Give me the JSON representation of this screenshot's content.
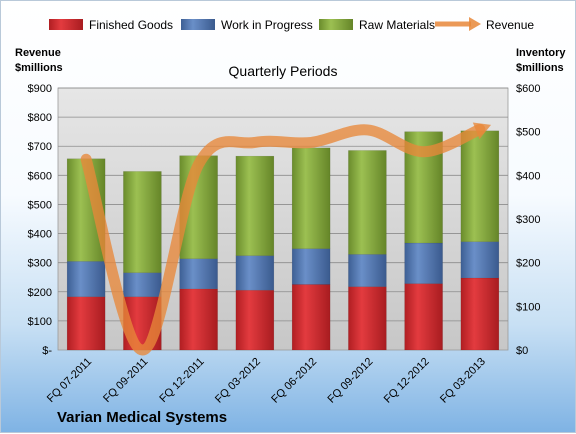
{
  "chart_data": {
    "type": "bar",
    "title": "Quarterly Periods",
    "company": "Varian Medical Systems",
    "left_axis_label": [
      "Revenue",
      "$millions"
    ],
    "right_axis_label": [
      "Inventory",
      "$millions"
    ],
    "categories": [
      "FQ 07-2011",
      "FQ 09-2011",
      "FQ 12-2011",
      "FQ 03-2012",
      "FQ 06-2012",
      "FQ 09-2012",
      "FQ 12-2012",
      "FQ 03-2013"
    ],
    "left_ticks": [
      "$-",
      "$100",
      "$200",
      "$300",
      "$400",
      "$500",
      "$600",
      "$700",
      "$800",
      "$900"
    ],
    "right_ticks": [
      "$0",
      "$100",
      "$200",
      "$300",
      "$400",
      "$500",
      "$600"
    ],
    "left_ylim": [
      0,
      900
    ],
    "right_ylim": [
      0,
      600
    ],
    "grid": true,
    "legend_position": "top",
    "series": [
      {
        "name": "Finished Goods",
        "axis": "right",
        "stacked": true,
        "color": "#c0262b",
        "values": [
          122,
          122,
          140,
          137,
          150,
          145,
          152,
          165
        ]
      },
      {
        "name": "Work in Progress",
        "axis": "right",
        "stacked": true,
        "color": "#4a6fa8",
        "values": [
          81,
          55,
          69,
          79,
          82,
          74,
          93,
          83
        ]
      },
      {
        "name": "Raw Materials",
        "axis": "right",
        "stacked": true,
        "color": "#7fa33b",
        "values": [
          235,
          232,
          236,
          228,
          231,
          238,
          255,
          254
        ]
      },
      {
        "name": "Revenue",
        "axis": "left",
        "type": "line",
        "color": "#e8883a",
        "values": [
          655,
          0,
          638,
          713,
          713,
          756,
          681,
          758
        ]
      }
    ]
  }
}
